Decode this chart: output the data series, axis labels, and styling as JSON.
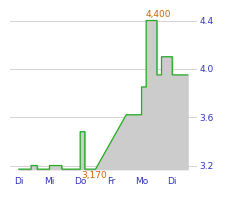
{
  "x_labels": [
    "Di",
    "Mi",
    "Do",
    "Fr",
    "Mo",
    "Di"
  ],
  "x_positions": [
    0,
    1,
    2,
    3,
    4,
    5
  ],
  "step_x": [
    0,
    0.4,
    0.4,
    0.6,
    0.6,
    1.0,
    1.0,
    1.4,
    1.4,
    1.6,
    1.6,
    2.0,
    2.0,
    2.15,
    2.15,
    2.5,
    2.5,
    3.5,
    3.5,
    4.0,
    4.0,
    4.15,
    4.15,
    4.5,
    4.5,
    4.65,
    4.65,
    5.0,
    5.0,
    5.5
  ],
  "step_y": [
    3.17,
    3.17,
    3.2,
    3.2,
    3.17,
    3.17,
    3.2,
    3.2,
    3.17,
    3.17,
    3.17,
    3.17,
    3.48,
    3.48,
    3.17,
    3.17,
    3.17,
    3.62,
    3.62,
    3.62,
    3.85,
    3.85,
    4.4,
    4.4,
    3.95,
    3.95,
    4.1,
    4.1,
    3.95,
    3.95
  ],
  "fill_base": 3.17,
  "ylim": [
    3.13,
    4.52
  ],
  "xlim": [
    -0.3,
    5.8
  ],
  "yticks": [
    3.2,
    3.6,
    4.0,
    4.4
  ],
  "ytick_labels": [
    "3.2",
    "3.6",
    "4.0",
    "4.4"
  ],
  "line_color": "#22aa22",
  "fill_color": "#cccccc",
  "bg_color": "#ffffff",
  "grid_color": "#cccccc",
  "label_color": "#3333bb",
  "annot_color": "#cc6600",
  "tick_fontsize": 6.5,
  "annot_fontsize": 6.5
}
